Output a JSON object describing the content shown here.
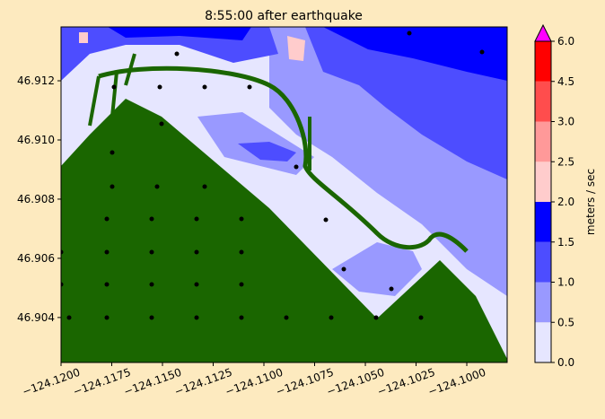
{
  "chart_data": {
    "type": "contour",
    "title": "8:55:00 after earthquake",
    "xlim": [
      -124.12,
      -124.09801
    ],
    "ylim": [
      46.90248,
      46.91382
    ],
    "xticks": [
      {
        "value": -124.12,
        "label": "−124.1200"
      },
      {
        "value": -124.1175,
        "label": "−124.1175"
      },
      {
        "value": -124.115,
        "label": "−124.1150"
      },
      {
        "value": -124.1125,
        "label": "−124.1125"
      },
      {
        "value": -124.11,
        "label": "−124.1100"
      },
      {
        "value": -124.1075,
        "label": "−124.1075"
      },
      {
        "value": -124.105,
        "label": "−124.1050"
      },
      {
        "value": -124.1025,
        "label": "−124.1025"
      },
      {
        "value": -124.1,
        "label": "−124.1000"
      }
    ],
    "yticks": [
      46.904,
      46.906,
      46.908,
      {
        "value": 46.91,
        "label": "46.910"
      },
      46.912
    ],
    "colorbar": {
      "label": "meters / sec",
      "levels": [
        {
          "value": 0,
          "label": "0.0"
        },
        0.5,
        {
          "value": 1,
          "label": "1.0"
        },
        1.5,
        {
          "value": 2,
          "label": "2.0"
        },
        2.5,
        {
          "value": 3,
          "label": "3.0"
        },
        4.5,
        {
          "value": 6,
          "label": "6.0"
        }
      ],
      "colors": [
        "#e6e6ff",
        "#9999ff",
        "#4d4dff",
        "#0000ff",
        "#ffcccc",
        "#ff9999",
        "#ff4d4d",
        "#ff0000"
      ],
      "extend_color": "#ff00ff"
    },
    "land_color": "#1a6600"
  }
}
